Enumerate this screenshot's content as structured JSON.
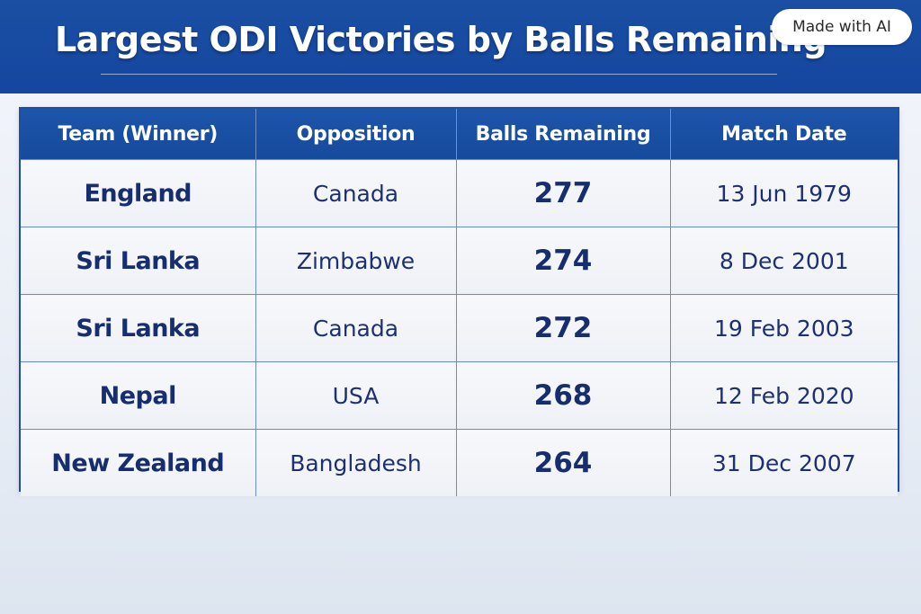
{
  "header": {
    "title": "Largest ODI Victories by Balls Remaining",
    "badge": "Made with AI",
    "background": "#1a4fa3"
  },
  "table": {
    "columns": [
      "Team (Winner)",
      "Opposition",
      "Balls Remaining",
      "Match Date"
    ],
    "rows": [
      {
        "team": "England",
        "opposition": "Canada",
        "balls": "277",
        "date": "13 Jun 1979"
      },
      {
        "team": "Sri Lanka",
        "opposition": "Zimbabwe",
        "balls": "274",
        "date": "8 Dec 2001"
      },
      {
        "team": "Sri Lanka",
        "opposition": "Canada",
        "balls": "272",
        "date": "19 Feb 2003"
      },
      {
        "team": "Nepal",
        "opposition": "USA",
        "balls": "268",
        "date": "12 Feb 2020"
      },
      {
        "team": "New Zealand",
        "opposition": "Bangladesh",
        "balls": "264",
        "date": "31 Dec 2007"
      }
    ]
  },
  "colors": {
    "header_blue": "#1a4fa3",
    "text_navy": "#172e6e",
    "grid_line": "#6b8cc6"
  }
}
